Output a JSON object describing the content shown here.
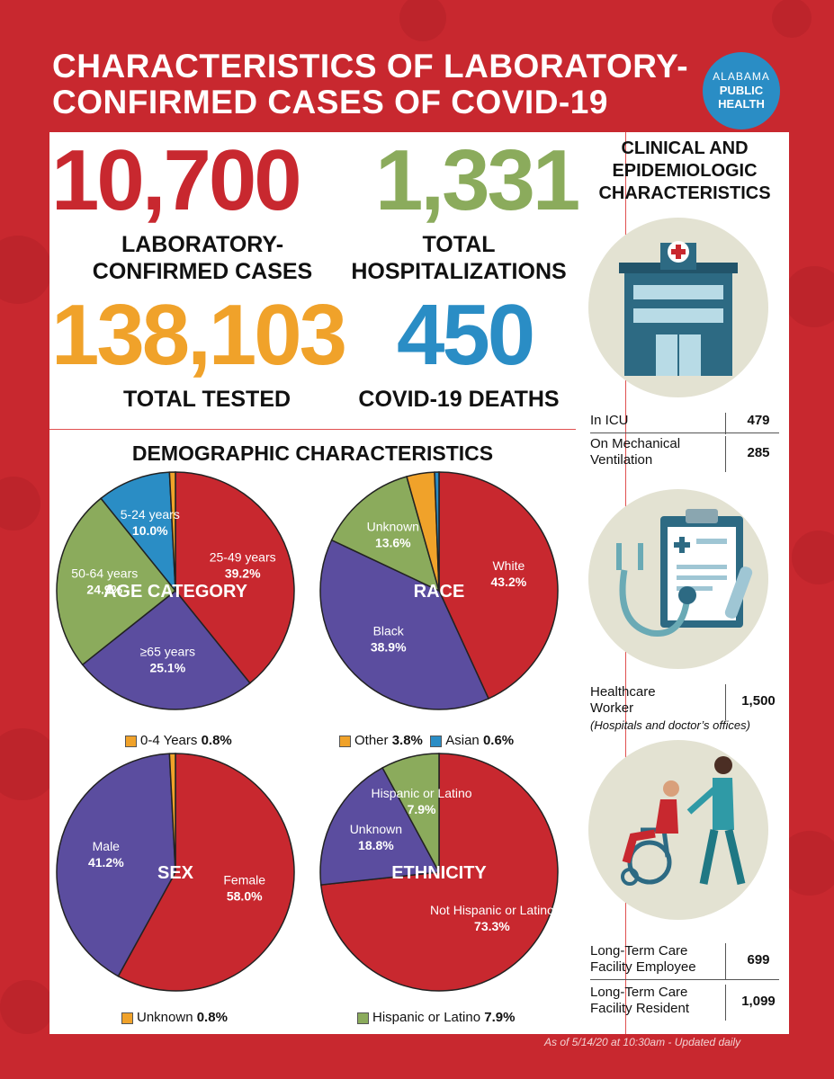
{
  "header": {
    "title_line1": "CHARACTERISTICS OF LABORATORY-",
    "title_line2": "CONFIRMED CASES OF COVID-19",
    "logo_line1": "ALABAMA",
    "logo_line2": "PUBLIC",
    "logo_line3": "HEALTH"
  },
  "colors": {
    "background": "#c8282f",
    "red": "#c8282f",
    "green": "#8bab5c",
    "orange": "#f0a22a",
    "blue": "#2a8dc5",
    "purple": "#5b4d9f"
  },
  "totals": {
    "cases": {
      "value": "10,700",
      "label_line1": "LABORATORY-",
      "label_line2": "CONFIRMED CASES"
    },
    "hospitalizations": {
      "value": "1,331",
      "label_line1": "TOTAL",
      "label_line2": "HOSPITALIZATIONS"
    },
    "tested": {
      "value": "138,103",
      "label": "TOTAL TESTED"
    },
    "deaths": {
      "value": "450",
      "label": "COVID-19 DEATHS"
    }
  },
  "demographics": {
    "title": "DEMOGRAPHIC CHARACTERISTICS"
  },
  "chart_data": [
    {
      "type": "pie",
      "title": "AGE CATEGORY",
      "slices": [
        {
          "label": "25-49 years",
          "value": 39.2,
          "display": "39.2%",
          "color": "#c8282f"
        },
        {
          "label": "≥65 years",
          "value": 25.1,
          "display": "25.1%",
          "color": "#5b4d9f"
        },
        {
          "label": "50-64 years",
          "value": 24.9,
          "display": "24.9%",
          "color": "#8bab5c"
        },
        {
          "label": "5-24 years",
          "value": 10.0,
          "display": "10.0%",
          "color": "#2a8dc5"
        },
        {
          "label": "0-4 Years",
          "value": 0.8,
          "display": "0.8%",
          "color": "#f0a22a"
        }
      ],
      "legend": [
        {
          "label": "0-4 Years",
          "value": "0.8%",
          "color": "#f0a22a"
        }
      ]
    },
    {
      "type": "pie",
      "title": "RACE",
      "slices": [
        {
          "label": "White",
          "value": 43.2,
          "display": "43.2%",
          "color": "#c8282f"
        },
        {
          "label": "Black",
          "value": 38.9,
          "display": "38.9%",
          "color": "#5b4d9f"
        },
        {
          "label": "Unknown",
          "value": 13.6,
          "display": "13.6%",
          "color": "#8bab5c"
        },
        {
          "label": "Other",
          "value": 3.8,
          "display": "3.8%",
          "color": "#f0a22a"
        },
        {
          "label": "Asian",
          "value": 0.6,
          "display": "0.6%",
          "color": "#2a8dc5"
        }
      ],
      "legend": [
        {
          "label": "Other",
          "value": "3.8%",
          "color": "#f0a22a"
        },
        {
          "label": "Asian",
          "value": "0.6%",
          "color": "#2a8dc5"
        }
      ]
    },
    {
      "type": "pie",
      "title": "SEX",
      "slices": [
        {
          "label": "Female",
          "value": 58.0,
          "display": "58.0%",
          "color": "#c8282f"
        },
        {
          "label": "Male",
          "value": 41.2,
          "display": "41.2%",
          "color": "#5b4d9f"
        },
        {
          "label": "Unknown",
          "value": 0.8,
          "display": "0.8%",
          "color": "#f0a22a"
        }
      ],
      "legend": [
        {
          "label": "Unknown",
          "value": "0.8%",
          "color": "#f0a22a"
        }
      ]
    },
    {
      "type": "pie",
      "title": "ETHNICITY",
      "slices": [
        {
          "label": "Not Hispanic or Latino",
          "value": 73.3,
          "display": "73.3%",
          "color": "#c8282f"
        },
        {
          "label": "Unknown",
          "value": 18.8,
          "display": "18.8%",
          "color": "#5b4d9f"
        },
        {
          "label": "Hispanic or Latino",
          "value": 7.9,
          "display": "7.9%",
          "color": "#8bab5c"
        }
      ],
      "legend": [
        {
          "label": "Hispanic or Latino",
          "value": "7.9%",
          "color": "#8bab5c"
        }
      ]
    }
  ],
  "clinical": {
    "title_line1": "CLINICAL AND",
    "title_line2": "EPIDEMIOLOGIC",
    "title_line3": "CHARACTERISTICS",
    "icu": {
      "label": "In ICU",
      "value": "479"
    },
    "ventilation": {
      "label_line1": "On Mechanical",
      "label_line2": "Ventilation",
      "value": "285"
    },
    "healthcare": {
      "label_line1": "Healthcare",
      "label_line2": "Worker",
      "value": "1,500",
      "note": "(Hospitals and doctor’s offices)"
    },
    "ltc_employee": {
      "label_line1": "Long-Term Care",
      "label_line2": "Facility Employee",
      "value": "699"
    },
    "ltc_resident": {
      "label_line1": "Long-Term Care",
      "label_line2": "Facility Resident",
      "value": "1,099"
    },
    "icons": [
      "hospital-icon",
      "clipboard-stethoscope-icon",
      "caregiver-wheelchair-icon"
    ]
  },
  "footer": "As of 5/14/20 at 10:30am - Updated daily"
}
